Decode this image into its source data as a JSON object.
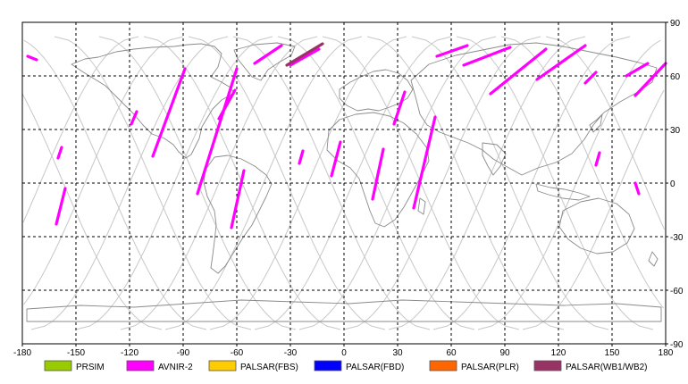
{
  "map": {
    "lon_range": [
      -180,
      180
    ],
    "lat_range": [
      -90,
      90
    ],
    "lon_ticks": [
      -180,
      -150,
      -120,
      -90,
      -60,
      -30,
      0,
      30,
      60,
      90,
      120,
      150,
      180
    ],
    "lat_ticks": [
      90,
      60,
      30,
      0,
      -30,
      -60,
      -90
    ],
    "lon_tick_labels": [
      "-180",
      "-150",
      "-120",
      "-90",
      "-60",
      "-30",
      "0",
      "30",
      "60",
      "90",
      "120",
      "150",
      "180"
    ],
    "lat_tick_labels": [
      "90",
      "60",
      "30",
      "0",
      "-30",
      "-60",
      "-90"
    ],
    "grid": true,
    "grid_style": "dashed"
  },
  "orbit_tracks": {
    "color": "#c8c8c8",
    "ascending_offsets": [
      -170,
      -145,
      -120,
      -95,
      -70,
      -45,
      -20,
      5,
      30,
      55,
      80,
      105,
      130,
      155
    ],
    "descending_offsets": [
      -157,
      -132,
      -107,
      -82,
      -57,
      -32,
      -7,
      18,
      43,
      68,
      93,
      118,
      143,
      168
    ]
  },
  "legend": {
    "items": [
      {
        "label": "PRSIM",
        "color": "#99cc00"
      },
      {
        "label": "AVNIR-2",
        "color": "#ff00ff"
      },
      {
        "label": "PALSAR(FBS)",
        "color": "#ffcc00"
      },
      {
        "label": "PALSAR(FBD)",
        "color": "#0000ff"
      },
      {
        "label": "PALSAR(PLR)",
        "color": "#ff6600"
      },
      {
        "label": "PALSAR(WB1/WB2)",
        "color": "#993366"
      }
    ]
  },
  "acquisitions": [
    {
      "sensor": "AVNIR-2",
      "from": [
        -177,
        71
      ],
      "to": [
        -172,
        69
      ]
    },
    {
      "sensor": "AVNIR-2",
      "from": [
        -158,
        20
      ],
      "to": [
        -160,
        14
      ]
    },
    {
      "sensor": "AVNIR-2",
      "from": [
        -156,
        -3
      ],
      "to": [
        -161,
        -23
      ]
    },
    {
      "sensor": "AVNIR-2",
      "from": [
        -116,
        40
      ],
      "to": [
        -119,
        33
      ]
    },
    {
      "sensor": "AVNIR-2",
      "from": [
        -89,
        64
      ],
      "to": [
        -107,
        15
      ]
    },
    {
      "sensor": "AVNIR-2",
      "from": [
        -60,
        64
      ],
      "to": [
        -82,
        -6
      ]
    },
    {
      "sensor": "AVNIR-2",
      "from": [
        -61,
        52
      ],
      "to": [
        -70,
        36
      ]
    },
    {
      "sensor": "AVNIR-2",
      "from": [
        -35,
        77
      ],
      "to": [
        -50,
        67
      ]
    },
    {
      "sensor": "AVNIR-2",
      "from": [
        -14,
        75
      ],
      "to": [
        -30,
        66
      ]
    },
    {
      "sensor": "AVNIR-2",
      "from": [
        -56,
        7
      ],
      "to": [
        -63,
        -25
      ]
    },
    {
      "sensor": "AVNIR-2",
      "from": [
        -23,
        18
      ],
      "to": [
        -25,
        11
      ]
    },
    {
      "sensor": "AVNIR-2",
      "from": [
        -2,
        23
      ],
      "to": [
        -7,
        4
      ]
    },
    {
      "sensor": "AVNIR-2",
      "from": [
        22,
        19
      ],
      "to": [
        16,
        -9
      ]
    },
    {
      "sensor": "AVNIR-2",
      "from": [
        34,
        51
      ],
      "to": [
        28,
        33
      ]
    },
    {
      "sensor": "AVNIR-2",
      "from": [
        51,
        37
      ],
      "to": [
        39,
        -14
      ]
    },
    {
      "sensor": "AVNIR-2",
      "from": [
        69,
        77
      ],
      "to": [
        52,
        71
      ]
    },
    {
      "sensor": "AVNIR-2",
      "from": [
        93,
        76
      ],
      "to": [
        67,
        66
      ]
    },
    {
      "sensor": "AVNIR-2",
      "from": [
        113,
        75
      ],
      "to": [
        82,
        50
      ]
    },
    {
      "sensor": "AVNIR-2",
      "from": [
        135,
        77
      ],
      "to": [
        108,
        58
      ]
    },
    {
      "sensor": "AVNIR-2",
      "from": [
        141,
        62
      ],
      "to": [
        135,
        56
      ]
    },
    {
      "sensor": "AVNIR-2",
      "from": [
        170,
        67
      ],
      "to": [
        158,
        60
      ]
    },
    {
      "sensor": "AVNIR-2",
      "from": [
        180,
        67
      ],
      "to": [
        163,
        49
      ]
    },
    {
      "sensor": "AVNIR-2",
      "from": [
        143,
        17
      ],
      "to": [
        141,
        10
      ]
    },
    {
      "sensor": "AVNIR-2",
      "from": [
        163,
        0
      ],
      "to": [
        165,
        -6
      ]
    },
    {
      "sensor": "PALSAR(WB1/WB2)",
      "from": [
        -12,
        78
      ],
      "to": [
        -32,
        66
      ]
    }
  ]
}
